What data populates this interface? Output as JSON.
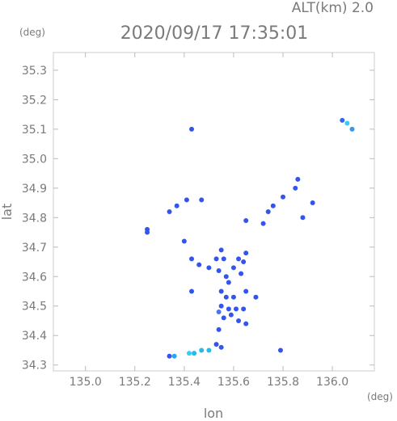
{
  "header": {
    "alt_label": "ALT(km) 2.0",
    "timestamp": "2020/09/17 17:35:01"
  },
  "axes": {
    "y_unit": "(deg)",
    "x_unit": "(deg)",
    "xlabel": "lon",
    "ylabel": "lat"
  },
  "chart_data": {
    "type": "scatter",
    "xlabel": "lon",
    "ylabel": "lat",
    "xlim": [
      134.87,
      136.17
    ],
    "ylim": [
      34.28,
      35.36
    ],
    "xticks": [
      135.0,
      135.2,
      135.4,
      135.6,
      135.8,
      136.0
    ],
    "xtick_labels": [
      "135.0",
      "135.2",
      "135.4",
      "135.6",
      "135.8",
      "136.0"
    ],
    "yticks": [
      34.3,
      34.4,
      34.5,
      34.6,
      34.7,
      34.8,
      34.9,
      35.0,
      35.1,
      35.2,
      35.3
    ],
    "ytick_labels": [
      "34.3",
      "34.4",
      "34.5",
      "34.6",
      "34.7",
      "34.8",
      "34.9",
      "35.0",
      "35.1",
      "35.2",
      "35.3"
    ],
    "grid": false,
    "colors": {
      "echo_strong": "#3355ee",
      "echo_medium": "#4f73f0",
      "echo_light": "#33ccff",
      "echo_cyan": "#22bbee"
    },
    "echoes": [
      {
        "lon": 136.06,
        "lat": 35.12,
        "color": "#33ccff"
      },
      {
        "lon": 136.08,
        "lat": 35.1,
        "color": "#3399ee"
      },
      {
        "lon": 136.04,
        "lat": 35.13,
        "color": "#3366ee"
      },
      {
        "lon": 135.43,
        "lat": 35.1,
        "color": "#3355ee"
      },
      {
        "lon": 135.86,
        "lat": 34.93,
        "color": "#3355ee"
      },
      {
        "lon": 135.85,
        "lat": 34.9,
        "color": "#3355ee"
      },
      {
        "lon": 135.8,
        "lat": 34.87,
        "color": "#3355ee"
      },
      {
        "lon": 135.92,
        "lat": 34.85,
        "color": "#3355ee"
      },
      {
        "lon": 135.88,
        "lat": 34.8,
        "color": "#3355ee"
      },
      {
        "lon": 135.76,
        "lat": 34.84,
        "color": "#3355ee"
      },
      {
        "lon": 135.74,
        "lat": 34.82,
        "color": "#3355ee"
      },
      {
        "lon": 135.72,
        "lat": 34.78,
        "color": "#3355ee"
      },
      {
        "lon": 135.41,
        "lat": 34.86,
        "color": "#3355ee"
      },
      {
        "lon": 135.37,
        "lat": 34.84,
        "color": "#3355ee"
      },
      {
        "lon": 135.34,
        "lat": 34.82,
        "color": "#3355ee"
      },
      {
        "lon": 135.25,
        "lat": 34.76,
        "color": "#3355ee"
      },
      {
        "lon": 135.25,
        "lat": 34.75,
        "color": "#3355ee"
      },
      {
        "lon": 135.47,
        "lat": 34.86,
        "color": "#3355ee"
      },
      {
        "lon": 135.4,
        "lat": 34.72,
        "color": "#3355ee"
      },
      {
        "lon": 135.65,
        "lat": 34.79,
        "color": "#3355ee"
      },
      {
        "lon": 135.65,
        "lat": 34.68,
        "color": "#3355ee"
      },
      {
        "lon": 135.64,
        "lat": 34.65,
        "color": "#3355ee"
      },
      {
        "lon": 135.55,
        "lat": 34.69,
        "color": "#3355ee"
      },
      {
        "lon": 135.53,
        "lat": 34.66,
        "color": "#3355ee"
      },
      {
        "lon": 135.56,
        "lat": 34.66,
        "color": "#3355ee"
      },
      {
        "lon": 135.6,
        "lat": 34.63,
        "color": "#3355ee"
      },
      {
        "lon": 135.62,
        "lat": 34.66,
        "color": "#3355ee"
      },
      {
        "lon": 135.63,
        "lat": 34.61,
        "color": "#3355ee"
      },
      {
        "lon": 135.57,
        "lat": 34.6,
        "color": "#3355ee"
      },
      {
        "lon": 135.54,
        "lat": 34.62,
        "color": "#3355ee"
      },
      {
        "lon": 135.58,
        "lat": 34.58,
        "color": "#3355ee"
      },
      {
        "lon": 135.55,
        "lat": 34.55,
        "color": "#3355ee"
      },
      {
        "lon": 135.57,
        "lat": 34.53,
        "color": "#3355ee"
      },
      {
        "lon": 135.6,
        "lat": 34.53,
        "color": "#3355ee"
      },
      {
        "lon": 135.55,
        "lat": 34.5,
        "color": "#3355ee"
      },
      {
        "lon": 135.58,
        "lat": 34.49,
        "color": "#3355ee"
      },
      {
        "lon": 135.61,
        "lat": 34.49,
        "color": "#3355ee"
      },
      {
        "lon": 135.64,
        "lat": 34.49,
        "color": "#3355ee"
      },
      {
        "lon": 135.56,
        "lat": 34.46,
        "color": "#3355ee"
      },
      {
        "lon": 135.59,
        "lat": 34.47,
        "color": "#3355ee"
      },
      {
        "lon": 135.54,
        "lat": 34.48,
        "color": "#4f73f0"
      },
      {
        "lon": 135.62,
        "lat": 34.45,
        "color": "#3355ee"
      },
      {
        "lon": 135.65,
        "lat": 34.55,
        "color": "#3355ee"
      },
      {
        "lon": 135.5,
        "lat": 34.63,
        "color": "#3355ee"
      },
      {
        "lon": 135.46,
        "lat": 34.64,
        "color": "#3355ee"
      },
      {
        "lon": 135.43,
        "lat": 34.66,
        "color": "#3355ee"
      },
      {
        "lon": 135.43,
        "lat": 34.55,
        "color": "#3355ee"
      },
      {
        "lon": 135.69,
        "lat": 34.53,
        "color": "#3355ee"
      },
      {
        "lon": 135.65,
        "lat": 34.44,
        "color": "#3355ee"
      },
      {
        "lon": 135.54,
        "lat": 34.42,
        "color": "#3355ee"
      },
      {
        "lon": 135.53,
        "lat": 34.37,
        "color": "#3355ee"
      },
      {
        "lon": 135.79,
        "lat": 34.35,
        "color": "#3355ee"
      },
      {
        "lon": 135.44,
        "lat": 34.34,
        "color": "#22bbee"
      },
      {
        "lon": 135.47,
        "lat": 34.35,
        "color": "#22bbee"
      },
      {
        "lon": 135.5,
        "lat": 34.35,
        "color": "#22bbee"
      },
      {
        "lon": 135.42,
        "lat": 34.34,
        "color": "#33ccff"
      },
      {
        "lon": 135.36,
        "lat": 34.33,
        "color": "#22aaee"
      },
      {
        "lon": 135.34,
        "lat": 34.33,
        "color": "#3355ee"
      },
      {
        "lon": 135.55,
        "lat": 34.36,
        "color": "#3355ee"
      }
    ]
  }
}
